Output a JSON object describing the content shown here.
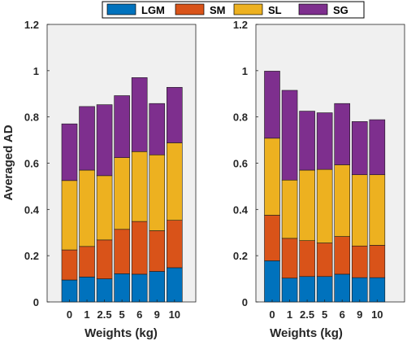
{
  "legend": {
    "entries": [
      "LGM",
      "SM",
      "SL",
      "SG"
    ]
  },
  "chart_data": [
    {
      "type": "bar",
      "stacked": true,
      "categories": [
        "0",
        "1",
        "2.5",
        "5",
        "6",
        "9",
        "10"
      ],
      "xlabel": "Weights (kg)",
      "ylabel": "Averaged AD",
      "ylim": [
        0,
        1.2
      ],
      "yticks": [
        "0",
        "0.2",
        "0.4",
        "0.6",
        "0.8",
        "1",
        "1.2"
      ],
      "grid": false,
      "legend_position": "top",
      "series": [
        {
          "name": "LGM",
          "color": "#0072BD",
          "values": [
            0.095,
            0.108,
            0.1,
            0.122,
            0.12,
            0.132,
            0.148
          ]
        },
        {
          "name": "SM",
          "color": "#D95319",
          "values": [
            0.13,
            0.132,
            0.168,
            0.192,
            0.228,
            0.176,
            0.205
          ]
        },
        {
          "name": "SL",
          "color": "#EDB120",
          "values": [
            0.3,
            0.33,
            0.278,
            0.31,
            0.302,
            0.328,
            0.335
          ]
        },
        {
          "name": "SG",
          "color": "#7E2F8E",
          "values": [
            0.245,
            0.275,
            0.307,
            0.268,
            0.32,
            0.222,
            0.24
          ]
        }
      ]
    },
    {
      "type": "bar",
      "stacked": true,
      "categories": [
        "0",
        "1",
        "2.5",
        "5",
        "6",
        "9",
        "10"
      ],
      "xlabel": "Weights (kg)",
      "ylabel": "",
      "ylim": [
        0,
        1.2
      ],
      "yticks": [
        "0",
        "0.2",
        "0.4",
        "0.6",
        "0.8",
        "1",
        "1.2"
      ],
      "grid": false,
      "series": [
        {
          "name": "LGM",
          "color": "#0072BD",
          "values": [
            0.178,
            0.103,
            0.11,
            0.11,
            0.12,
            0.105,
            0.105
          ]
        },
        {
          "name": "SM",
          "color": "#D95319",
          "values": [
            0.197,
            0.172,
            0.155,
            0.145,
            0.163,
            0.137,
            0.14
          ]
        },
        {
          "name": "SL",
          "color": "#EDB120",
          "values": [
            0.333,
            0.252,
            0.305,
            0.318,
            0.31,
            0.308,
            0.305
          ]
        },
        {
          "name": "SG",
          "color": "#7E2F8E",
          "values": [
            0.29,
            0.388,
            0.255,
            0.245,
            0.265,
            0.23,
            0.238
          ]
        }
      ]
    }
  ]
}
